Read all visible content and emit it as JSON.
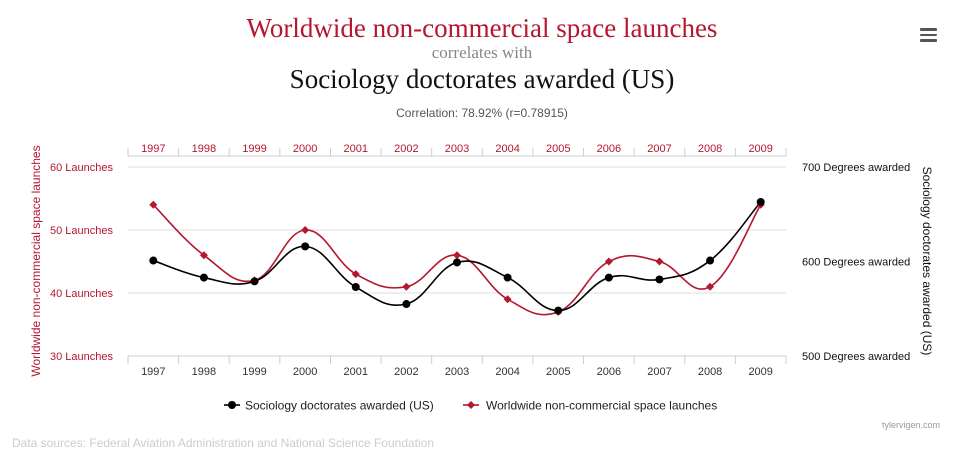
{
  "title": {
    "line1": "Worldwide non-commercial space launches",
    "line2": "correlates with",
    "line3": "Sociology doctorates awarded (US)"
  },
  "correlation": "Correlation: 78.92% (r=0.78915)",
  "footer": {
    "source": "Data sources: Federal Aviation Administration and National Science Foundation",
    "credit": "tylervigen.com"
  },
  "menu_icon": "hamburger-menu-icon",
  "colors": {
    "launches": "#b4172e",
    "doctorates": "#000000",
    "grid": "#dddddd"
  },
  "chart_data": {
    "type": "line",
    "x": [
      1997,
      1998,
      1999,
      2000,
      2001,
      2002,
      2003,
      2004,
      2005,
      2006,
      2007,
      2008,
      2009
    ],
    "series": [
      {
        "name": "Sociology doctorates awarded (US)",
        "axis": "right",
        "marker": "circle",
        "values": [
          601,
          583,
          579,
          616,
          573,
          555,
          599,
          583,
          548,
          583,
          581,
          601,
          663
        ]
      },
      {
        "name": "Worldwide non-commercial space launches",
        "axis": "left",
        "marker": "diamond",
        "values": [
          54,
          46,
          42,
          50,
          43,
          41,
          46,
          39,
          37,
          45,
          45,
          41,
          54
        ]
      }
    ],
    "y_left": {
      "label": "Worldwide non-commercial space launches",
      "range": [
        30,
        60
      ],
      "ticks": [
        30,
        40,
        50,
        60
      ],
      "tick_labels": [
        "30 Launches",
        "40 Launches",
        "50 Launches",
        "60 Launches"
      ]
    },
    "y_right": {
      "label": "Sociology doctorates awarded (US)",
      "range": [
        500,
        700
      ],
      "ticks": [
        500,
        600,
        700
      ],
      "tick_labels": [
        "500 Degrees awarded",
        "600 Degrees awarded",
        "700 Degrees awarded"
      ]
    },
    "x_axis": {
      "top_and_bottom_labels": true
    },
    "grid": true,
    "legend": "bottom-center"
  }
}
